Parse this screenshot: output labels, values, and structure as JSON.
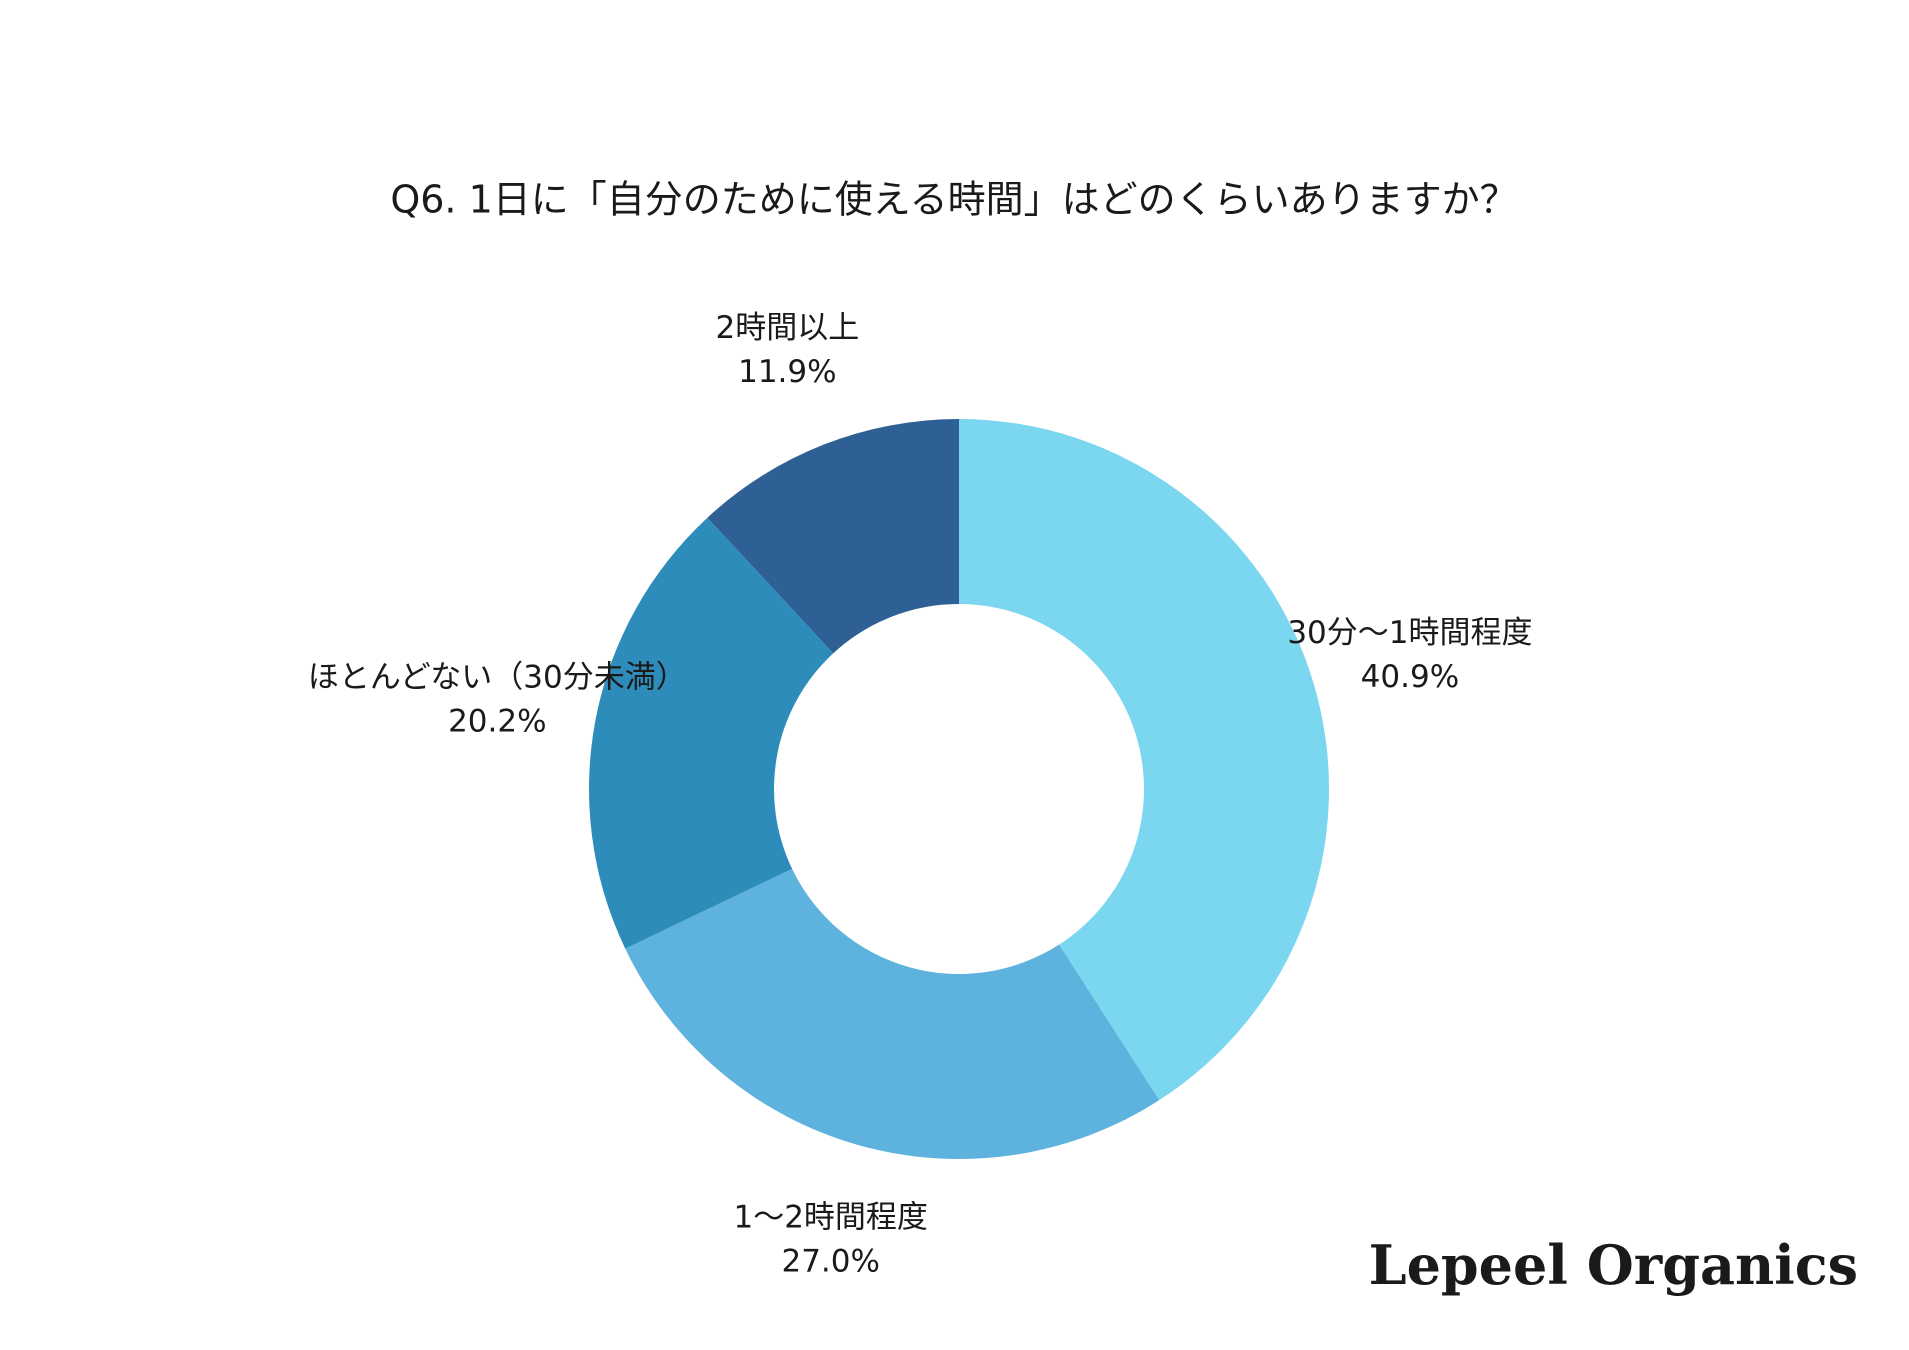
{
  "chart_data": {
    "type": "donut",
    "title": "Q6. 1日に「自分のために使える時間」はどのくらいありますか？",
    "categories": [
      "30分〜1時間程度",
      "1〜2時間程度",
      "ほとんどない（30分未満）",
      "2時間以上"
    ],
    "values": [
      40.9,
      27.0,
      20.2,
      11.9
    ],
    "value_labels": [
      "40.9%",
      "27.0%",
      "20.2%",
      "11.9%"
    ],
    "colors": [
      "#7bd6ef",
      "#5eb2de",
      "#2e8cbb",
      "#2e6096"
    ]
  },
  "brand": "Lepeel Organics"
}
